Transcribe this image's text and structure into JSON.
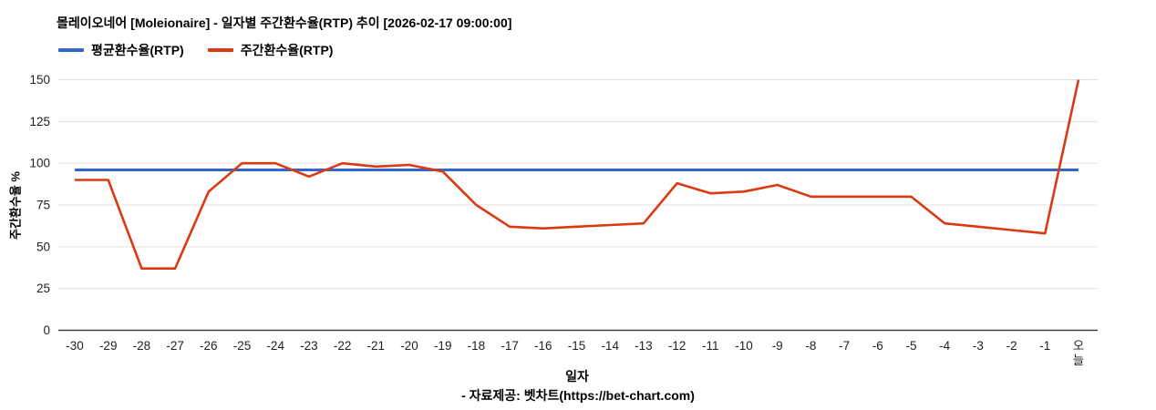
{
  "title": "몰레이오네어 [Moleionaire] - 일자별 주간환수율(RTP) 추이 [2026-02-17 09:00:00]",
  "legend": [
    {
      "label": "평균환수율(RTP)",
      "color": "#3366cc"
    },
    {
      "label": "주간환수율(RTP)",
      "color": "#dc3912"
    }
  ],
  "footer": "- 자료제공: 벳차트(https://bet-chart.com)",
  "chart_data": {
    "type": "line",
    "title": "몰레이오네어 [Moleionaire] - 일자별 주간환수율(RTP) 추이 [2026-02-17 09:00:00]",
    "xlabel": "일자",
    "ylabel": "주간환수율 %",
    "ylim": [
      0,
      150
    ],
    "yticks": [
      0,
      25,
      50,
      75,
      100,
      125,
      150
    ],
    "grid": true,
    "legend_position": "top",
    "categories": [
      "-30",
      "-29",
      "-28",
      "-27",
      "-26",
      "-25",
      "-24",
      "-23",
      "-22",
      "-21",
      "-20",
      "-19",
      "-18",
      "-17",
      "-16",
      "-15",
      "-14",
      "-13",
      "-12",
      "-11",
      "-10",
      "-9",
      "-8",
      "-7",
      "-6",
      "-5",
      "-4",
      "-3",
      "-2",
      "-1",
      "오늘"
    ],
    "series": [
      {
        "name": "평균환수율(RTP)",
        "color": "#3366cc",
        "constant": 96
      },
      {
        "name": "주간환수율(RTP)",
        "color": "#dc3912",
        "values": [
          90,
          90,
          37,
          37,
          83,
          100,
          100,
          92,
          100,
          98,
          99,
          95,
          75,
          62,
          61,
          62,
          63,
          64,
          88,
          82,
          83,
          87,
          80,
          80,
          80,
          80,
          64,
          62,
          60,
          58,
          150
        ]
      }
    ],
    "colors": {
      "gridline": "#e0e0e0",
      "baseline": "#424242",
      "tick_text": "#222222"
    }
  }
}
